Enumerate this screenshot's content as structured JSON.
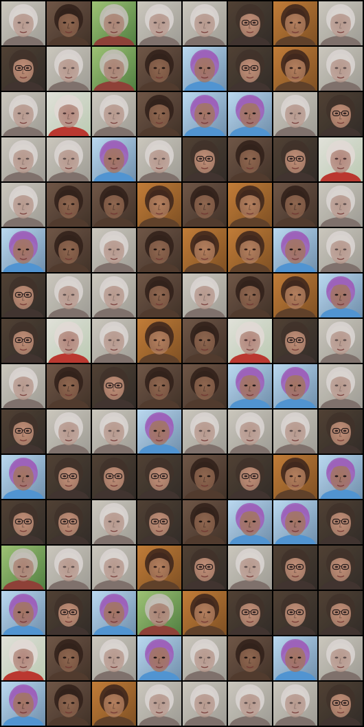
{
  "grid": {
    "columns": 8,
    "rows": 16,
    "palettes": {
      "pale": {
        "bg": "#9a9890",
        "bg2": "#c9c5bb",
        "skin": "#b5968a",
        "hair": "#d8d3cf",
        "shirt": "#7a6c66",
        "glasses": false,
        "hat": false,
        "eyes": "#5a4a48"
      },
      "glasses": {
        "bg": "#2a2420",
        "bg2": "#4a3a2c",
        "skin": "#c08c74",
        "hair": "#3a2a22",
        "shirt": "#3a2c28",
        "glasses": true,
        "hat": false,
        "eyes": "#2a1a18"
      },
      "dark": {
        "bg": "#3a2a20",
        "bg2": "#6a5040",
        "skin": "#8a6048",
        "hair": "#2a1a12",
        "shirt": "#4a3426",
        "glasses": false,
        "hat": false,
        "eyes": "#1a0e0a"
      },
      "purplehat": {
        "bg": "#6a8aa8",
        "bg2": "#b8d8f0",
        "skin": "#a0705c",
        "hair": "#9a5cb8",
        "shirt": "#4a90d0",
        "glasses": false,
        "hat": true,
        "eyes": "#1a1010"
      },
      "warm": {
        "bg": "#7a4a1c",
        "bg2": "#c07830",
        "skin": "#b07a58",
        "hair": "#3a2014",
        "shirt": "#5a3a22",
        "glasses": false,
        "hat": false,
        "eyes": "#2a1610"
      },
      "green": {
        "bg": "#4a7a3a",
        "bg2": "#9ac070",
        "skin": "#a88070",
        "hair": "#c0bcb4",
        "shirt": "#8a3a30",
        "glasses": false,
        "hat": false,
        "eyes": "#4a3634"
      },
      "red": {
        "bg": "#b8c8b0",
        "bg2": "#e0e0d8",
        "skin": "#b08478",
        "hair": "#e0d8d4",
        "shirt": "#b83028",
        "glasses": false,
        "hat": false,
        "eyes": "#4a3030"
      }
    },
    "cells": [
      "pale",
      "dark",
      "green",
      "pale",
      "pale",
      "glasses",
      "warm",
      "pale",
      "glasses",
      "pale",
      "green",
      "dark",
      "purplehat",
      "glasses",
      "warm",
      "pale",
      "pale",
      "red",
      "pale",
      "dark",
      "purplehat",
      "purplehat",
      "pale",
      "glasses",
      "pale",
      "pale",
      "purplehat",
      "pale",
      "glasses",
      "dark",
      "glasses",
      "red",
      "pale",
      "dark",
      "dark",
      "warm",
      "dark",
      "warm",
      "dark",
      "pale",
      "purplehat",
      "dark",
      "pale",
      "dark",
      "warm",
      "warm",
      "purplehat",
      "pale",
      "glasses",
      "pale",
      "pale",
      "dark",
      "pale",
      "dark",
      "warm",
      "purplehat",
      "glasses",
      "red",
      "pale",
      "warm",
      "dark",
      "red",
      "glasses",
      "pale",
      "pale",
      "dark",
      "glasses",
      "dark",
      "dark",
      "purplehat",
      "purplehat",
      "pale",
      "glasses",
      "pale",
      "pale",
      "purplehat",
      "pale",
      "pale",
      "pale",
      "glasses",
      "purplehat",
      "glasses",
      "glasses",
      "glasses",
      "dark",
      "glasses",
      "warm",
      "purplehat",
      "glasses",
      "glasses",
      "pale",
      "glasses",
      "dark",
      "purplehat",
      "purplehat",
      "glasses",
      "green",
      "pale",
      "pale",
      "warm",
      "glasses",
      "pale",
      "glasses",
      "glasses",
      "purplehat",
      "glasses",
      "purplehat",
      "green",
      "warm",
      "glasses",
      "glasses",
      "glasses",
      "red",
      "dark",
      "pale",
      "purplehat",
      "pale",
      "dark",
      "purplehat",
      "pale",
      "purplehat",
      "dark",
      "warm",
      "pale",
      "pale",
      "pale",
      "pale",
      "glasses"
    ]
  }
}
